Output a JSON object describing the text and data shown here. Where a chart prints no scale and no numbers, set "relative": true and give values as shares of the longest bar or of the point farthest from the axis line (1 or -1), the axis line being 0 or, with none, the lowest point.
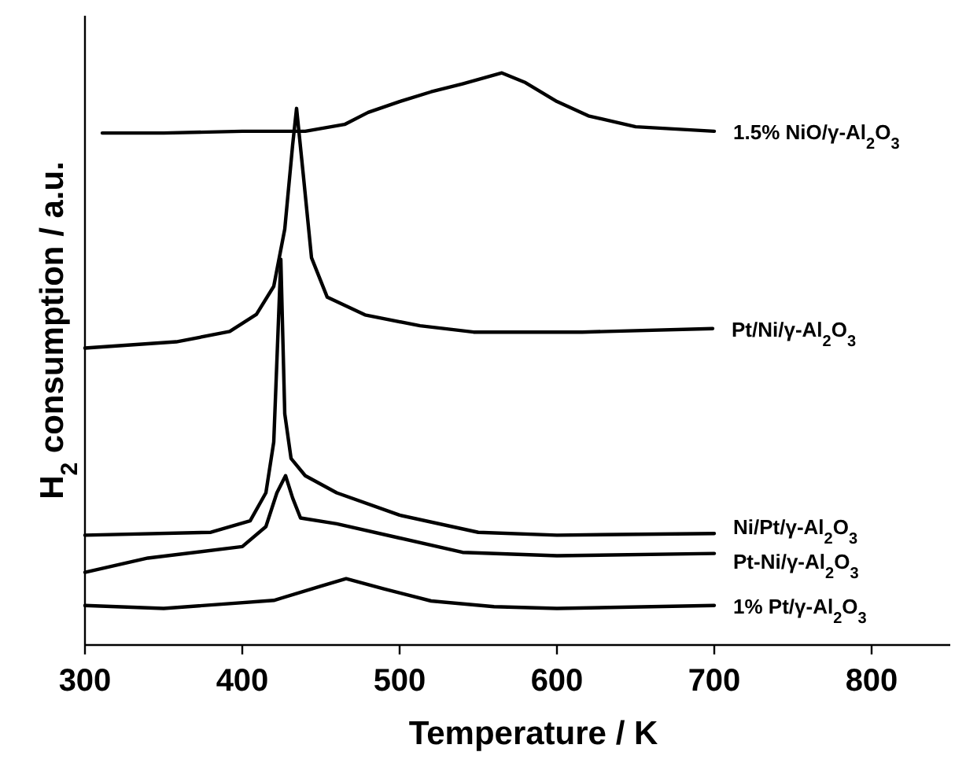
{
  "chart_data": {
    "type": "line",
    "relative": true,
    "xlabel": "Temperature / K",
    "ylabel": "H$_{2}$ consumption / a.u.",
    "xlim": [
      300,
      850
    ],
    "xticks": [
      300,
      400,
      500,
      600,
      700,
      800
    ],
    "series": [
      {
        "name": "1.5% NiO/γ-Al$_{2}$O$_{3}$",
        "color": "#000000",
        "x": [
          311,
          350,
          400,
          440,
          465,
          480,
          500,
          520,
          540,
          565,
          580,
          600,
          620,
          650,
          700
        ],
        "values": [
          0.895,
          0.895,
          0.898,
          0.898,
          0.91,
          0.931,
          0.95,
          0.967,
          0.981,
          1,
          0.983,
          0.95,
          0.925,
          0.906,
          0.898
        ]
      },
      {
        "name": "Pt/Ni/γ-Al$_{2}$O$_{3}$",
        "color": "#000000",
        "x": [
          300,
          358,
          392,
          409,
          420,
          427,
          432,
          434.5,
          438.7,
          444,
          454,
          478,
          513,
          547,
          616,
          699
        ],
        "values": [
          0.519,
          0.53,
          0.548,
          0.578,
          0.627,
          0.727,
          0.874,
          0.938,
          0.824,
          0.677,
          0.608,
          0.577,
          0.558,
          0.547,
          0.547,
          0.553
        ]
      },
      {
        "name": "Ni/Pt/γ-Al$_{2}$O$_{3}$",
        "color": "#000000",
        "x": [
          300,
          380,
          405,
          415,
          420,
          424.5,
          427,
          431,
          440,
          460,
          500,
          550,
          600,
          700
        ],
        "values": [
          0.192,
          0.197,
          0.217,
          0.266,
          0.355,
          0.674,
          0.404,
          0.326,
          0.296,
          0.266,
          0.227,
          0.197,
          0.192,
          0.195
        ]
      },
      {
        "name": "Pt-Ni/γ-Al$_{2}$O$_{3}$",
        "color": "#000000",
        "x": [
          300,
          340,
          400,
          415,
          422,
          427.5,
          432,
          437,
          460,
          500,
          540,
          600,
          700
        ],
        "values": [
          0.127,
          0.152,
          0.172,
          0.207,
          0.266,
          0.296,
          0.257,
          0.222,
          0.212,
          0.187,
          0.162,
          0.156,
          0.16
        ]
      },
      {
        "name": "1% Pt/γ-Al$_{2}$O$_{3}$",
        "color": "#000000",
        "x": [
          300,
          350,
          420,
          450,
          466,
          490,
          520,
          560,
          600,
          700
        ],
        "values": [
          0.069,
          0.064,
          0.078,
          0.103,
          0.116,
          0.098,
          0.077,
          0.067,
          0.064,
          0.069
        ]
      }
    ]
  }
}
